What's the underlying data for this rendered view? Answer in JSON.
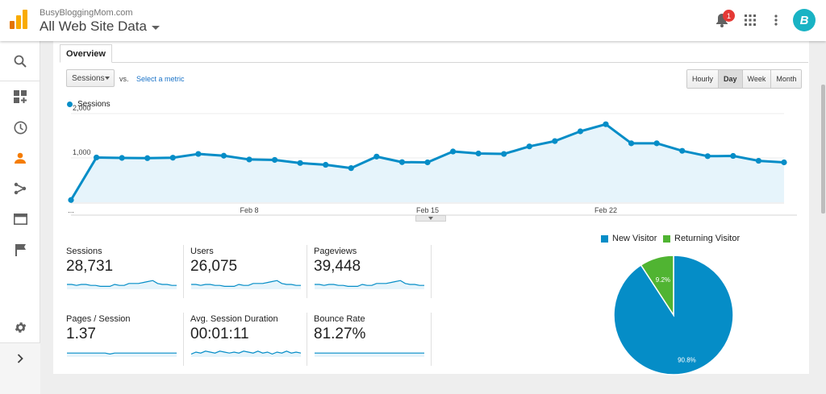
{
  "header": {
    "account_name": "BusyBloggingMom.com",
    "property_view": "All Web Site Data",
    "notification_count": "1",
    "avatar_letter": "B"
  },
  "tabs": [
    {
      "label": "Overview",
      "active": true
    }
  ],
  "metric_selector": {
    "selected": "Sessions",
    "vs_label": "vs.",
    "select_metric_link": "Select a metric"
  },
  "granularity": {
    "options": [
      "Hourly",
      "Day",
      "Week",
      "Month"
    ],
    "active": "Day"
  },
  "colors": {
    "accent": "#058dc7",
    "new_visitor": "#058dc7",
    "returning_visitor": "#50b432",
    "area_fill": "#e6f4fb"
  },
  "sidebar": {
    "icons": [
      "search-icon",
      "dashboard-customize-icon",
      "clock-icon",
      "person-icon",
      "acquisition-icon",
      "behavior-icon",
      "flag-icon",
      "settings-icon",
      "expand-icon"
    ],
    "active": "person-icon"
  },
  "chart_data": [
    {
      "type": "line",
      "title": "",
      "series": [
        {
          "name": "Sessions",
          "values": [
            50,
            1010,
            1000,
            995,
            1005,
            1090,
            1050,
            965,
            955,
            885,
            845,
            770,
            1030,
            905,
            900,
            1145,
            1100,
            1090,
            1260,
            1380,
            1600,
            1760,
            1330,
            1330,
            1160,
            1040,
            1045,
            935,
            900
          ]
        }
      ],
      "x_tick_labels": [
        "...",
        "Feb 8",
        "Feb 15",
        "Feb 22"
      ],
      "y_tick_labels": [
        "1,000",
        "2,000"
      ],
      "ylim": [
        0,
        2200
      ],
      "grid": true
    },
    {
      "type": "pie",
      "title": "",
      "series": [
        {
          "name": "New Visitor",
          "value": 90.8
        },
        {
          "name": "Returning Visitor",
          "value": 9.2
        }
      ],
      "slice_labels": [
        "90.8%",
        "9.2%"
      ],
      "legend": "top"
    }
  ],
  "scorecards": [
    {
      "label": "Sessions",
      "value": "28,731",
      "spark": [
        5,
        5,
        4,
        5,
        5,
        4,
        4,
        3,
        3,
        3,
        5,
        4,
        4,
        6,
        6,
        6,
        7,
        8,
        9,
        6,
        5,
        5,
        4,
        4
      ]
    },
    {
      "label": "Users",
      "value": "26,075",
      "spark": [
        5,
        5,
        4,
        5,
        5,
        4,
        4,
        3,
        3,
        3,
        5,
        4,
        4,
        6,
        6,
        6,
        7,
        8,
        9,
        6,
        5,
        5,
        4,
        4
      ]
    },
    {
      "label": "Pageviews",
      "value": "39,448",
      "spark": [
        5,
        5,
        4,
        5,
        5,
        4,
        4,
        3,
        3,
        3,
        5,
        4,
        4,
        6,
        6,
        6,
        7,
        8,
        9,
        6,
        5,
        5,
        4,
        4
      ]
    },
    {
      "label": "Pages / Session",
      "value": "1.37",
      "spark": [
        4,
        4,
        4,
        4,
        4,
        4,
        4,
        4,
        4,
        3,
        4,
        4,
        4,
        4,
        4,
        4,
        4,
        4,
        4,
        4,
        4,
        4,
        4,
        4
      ]
    },
    {
      "label": "Avg. Session Duration",
      "value": "00:01:11",
      "spark": [
        3,
        5,
        4,
        6,
        5,
        4,
        6,
        5,
        4,
        5,
        4,
        6,
        5,
        4,
        6,
        4,
        5,
        3,
        5,
        4,
        6,
        4,
        5,
        4
      ]
    },
    {
      "label": "Bounce Rate",
      "value": "81.27%",
      "spark": [
        4,
        4,
        4,
        4,
        4,
        4,
        4,
        4,
        4,
        4,
        4,
        4,
        4,
        4,
        4,
        4,
        4,
        4,
        4,
        4,
        4,
        4,
        4,
        4
      ]
    }
  ]
}
